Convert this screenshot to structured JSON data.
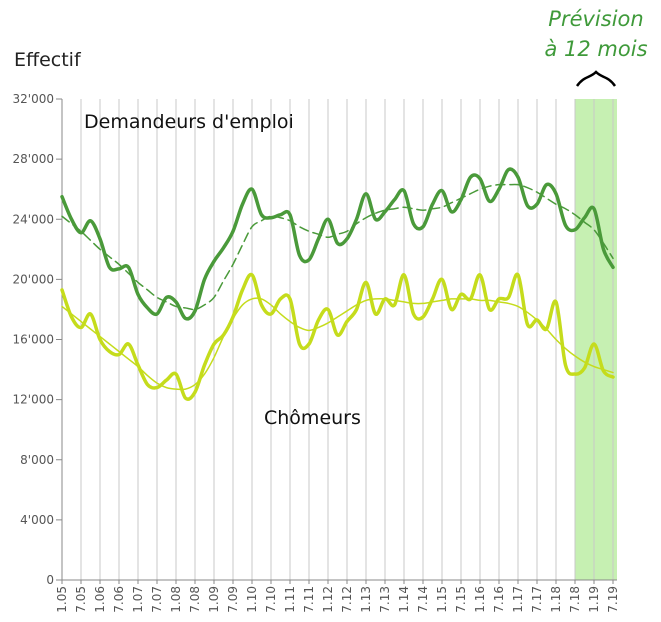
{
  "chart_data": {
    "type": "line",
    "y_label": "Effectif",
    "annotation": [
      "Prévision",
      "à 12 mois"
    ],
    "forecast_start": "7.18",
    "categories": [
      "1.05",
      null,
      "7.05",
      null,
      "1.06",
      null,
      "7.06",
      null,
      "1.07",
      null,
      "7.07",
      null,
      "1.08",
      null,
      "7.08",
      null,
      "1.09",
      null,
      "7.09",
      null,
      "1.10",
      null,
      "7.10",
      null,
      "1.11",
      null,
      "7.11",
      null,
      "1.12",
      null,
      "7.12",
      null,
      "1.13",
      null,
      "7.13",
      null,
      "1.14",
      null,
      "7.14",
      null,
      "1.15",
      null,
      "7.15",
      null,
      "1.16",
      null,
      "7.16",
      null,
      "1.17",
      null,
      "7.17",
      null,
      "1.18",
      null,
      "7.18",
      null,
      "1.19",
      null,
      "7.19"
    ],
    "series": [
      {
        "name": "Demandeurs d'emploi",
        "color": "#4a9a3a",
        "width": 3.5,
        "dashed": false,
        "values": [
          25500,
          24000,
          23100,
          23900,
          22700,
          20800,
          20700,
          20800,
          19000,
          18100,
          17700,
          18800,
          18500,
          17400,
          17900,
          20000,
          21200,
          22100,
          23200,
          25000,
          26000,
          24300,
          24100,
          24300,
          24300,
          21600,
          21300,
          22700,
          24000,
          22400,
          22700,
          24000,
          25700,
          24000,
          24500,
          25300,
          25900,
          23700,
          23500,
          25000,
          25900,
          24500,
          25300,
          26800,
          26700,
          25200,
          26000,
          27300,
          26800,
          24900,
          25000,
          26300,
          25700,
          23600,
          23300,
          24100,
          24700,
          22000,
          20800
        ]
      },
      {
        "color": "#4a9a3a",
        "width": 1.5,
        "dashed": true,
        "values": [
          24200,
          23700,
          23200,
          22600,
          22000,
          21500,
          21000,
          20400,
          19800,
          19300,
          18800,
          18500,
          18200,
          18100,
          18000,
          18300,
          18800,
          19900,
          21000,
          22300,
          23500,
          23900,
          24200,
          24100,
          23900,
          23500,
          23200,
          23000,
          22800,
          23000,
          23200,
          23700,
          24100,
          24400,
          24600,
          24700,
          24800,
          24700,
          24600,
          24700,
          24800,
          25100,
          25400,
          25700,
          26000,
          26200,
          26300,
          26300,
          26300,
          26100,
          25800,
          25400,
          25000,
          24700,
          24300,
          23800,
          23300,
          22400,
          21400
        ]
      },
      {
        "name": "Chômeurs",
        "color": "#c5dc1c",
        "width": 3.5,
        "dashed": false,
        "values": [
          19300,
          17500,
          16800,
          17700,
          16000,
          15200,
          15000,
          15700,
          14300,
          13000,
          12800,
          13300,
          13700,
          12100,
          12500,
          14300,
          15700,
          16300,
          17500,
          19300,
          20300,
          18300,
          17700,
          18700,
          18700,
          15700,
          15700,
          17300,
          18000,
          16300,
          17200,
          18000,
          19800,
          17700,
          18700,
          18300,
          20300,
          17700,
          17500,
          18700,
          20000,
          18000,
          19000,
          18700,
          20300,
          18000,
          18700,
          18800,
          20300,
          17000,
          17300,
          16700,
          18500,
          14300,
          13700,
          14100,
          15700,
          13900,
          13500
        ]
      },
      {
        "color": "#c5dc1c",
        "width": 1.5,
        "dashed": false,
        "values": [
          18200,
          17700,
          17200,
          16700,
          16200,
          15700,
          15200,
          14700,
          14200,
          13600,
          13100,
          12800,
          12700,
          12700,
          13000,
          13700,
          14800,
          16200,
          17400,
          18300,
          18700,
          18700,
          18300,
          17700,
          17200,
          16800,
          16600,
          16800,
          17100,
          17500,
          17900,
          18300,
          18600,
          18700,
          18700,
          18600,
          18500,
          18400,
          18400,
          18500,
          18600,
          18700,
          18700,
          18700,
          18600,
          18600,
          18500,
          18400,
          18200,
          17800,
          17300,
          16700,
          16000,
          15400,
          14900,
          14500,
          14200,
          14000,
          13800
        ]
      }
    ],
    "ylim": [
      0,
      32000
    ],
    "yticks": [
      0,
      {
        "value": 4000,
        "label": "4'000"
      },
      {
        "value": 8000,
        "label": "8'000"
      },
      {
        "value": 12000,
        "label": "12'000"
      },
      {
        "value": 16000,
        "label": "16'000"
      },
      {
        "value": 20000,
        "label": "20'000"
      },
      {
        "value": 24000,
        "label": "24'000"
      },
      {
        "value": 28000,
        "label": "28'000"
      },
      {
        "value": 32000,
        "label": "32'000"
      }
    ],
    "grid": true
  }
}
